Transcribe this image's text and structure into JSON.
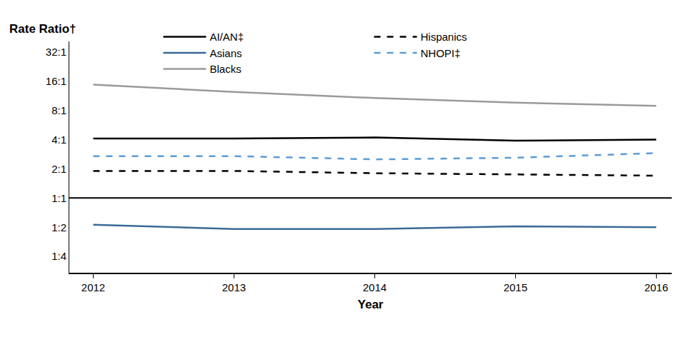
{
  "chart_data": {
    "type": "line",
    "y_label": "Rate Ratio†",
    "x_label": "Year",
    "x": [
      2012,
      2013,
      2014,
      2015,
      2016
    ],
    "series": [
      {
        "name": "AI/AN‡",
        "color": "#000000",
        "line_style": "solid",
        "values": [
          4.1,
          4.1,
          4.2,
          3.9,
          4.0
        ]
      },
      {
        "name": "Hispanics",
        "color": "#000000",
        "line_style": "dash",
        "values": [
          1.9,
          1.9,
          1.8,
          1.75,
          1.7
        ]
      },
      {
        "name": "Asians",
        "color": "#3b6a96",
        "line_style": "solid",
        "values": [
          0.53,
          0.48,
          0.48,
          0.51,
          0.5
        ]
      },
      {
        "name": "NHOPI‡",
        "color": "#5b9bd5",
        "line_style": "dash",
        "values": [
          2.7,
          2.7,
          2.5,
          2.6,
          2.9
        ]
      },
      {
        "name": "Blacks",
        "color": "#9a9a9a",
        "line_style": "solid",
        "values": [
          14.7,
          12.4,
          10.7,
          9.6,
          8.9
        ]
      }
    ],
    "hline": 1,
    "log": "y",
    "grid": false,
    "legend": "top",
    "xlim": [
      2011.83,
      2016.11
    ],
    "xticks": [
      2012,
      2013,
      2014,
      2015,
      2016
    ],
    "ylim": [
      0.17,
      41
    ],
    "yticks": [
      {
        "value": 0.25,
        "label": "1:4"
      },
      {
        "value": 0.5,
        "label": "1:2"
      },
      {
        "value": 1,
        "label": "1:1"
      },
      {
        "value": 2,
        "label": "2:1"
      },
      {
        "value": 4,
        "label": "4:1"
      },
      {
        "value": 8,
        "label": "8:1"
      },
      {
        "value": 16,
        "label": "16:1"
      },
      {
        "value": 32,
        "label": "32:1"
      }
    ]
  }
}
